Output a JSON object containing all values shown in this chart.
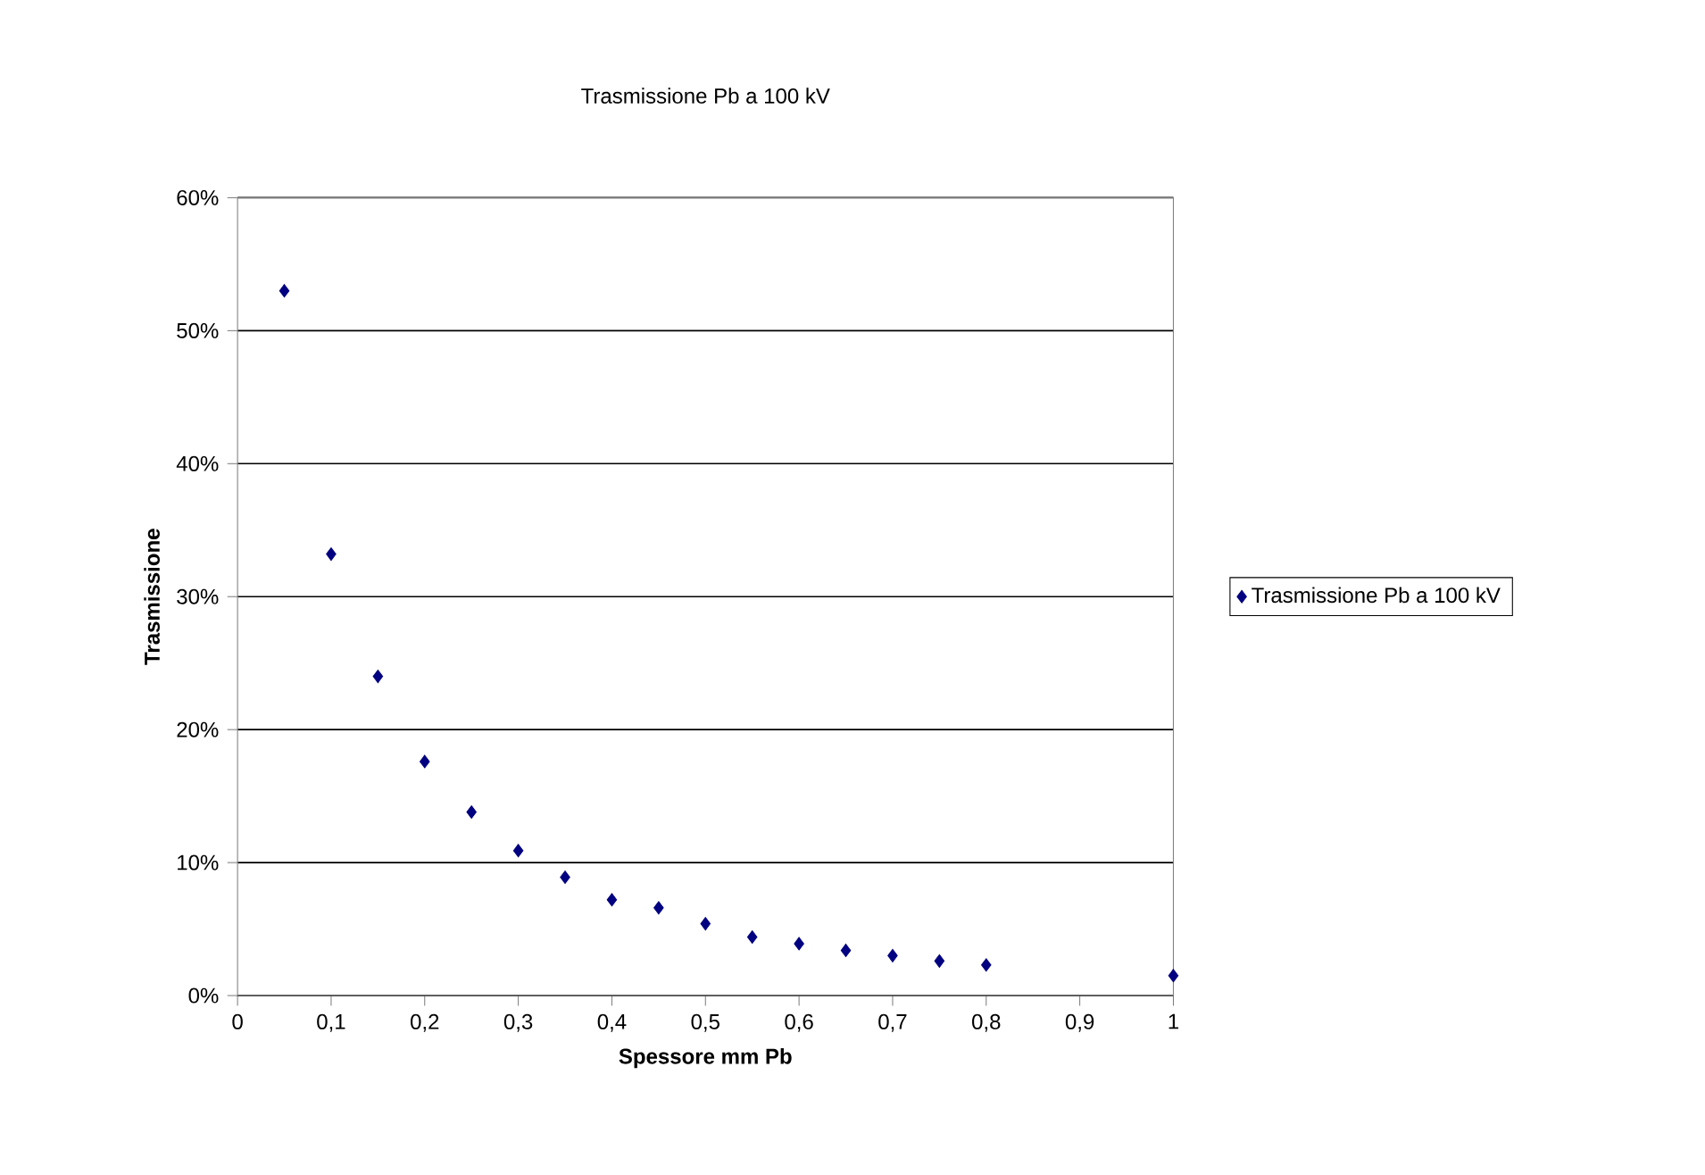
{
  "chart_data": {
    "type": "scatter",
    "title": "Trasmissione Pb a 100 kV",
    "xlabel": "Spessore mm Pb",
    "ylabel": "Trasmissione",
    "x": [
      0.05,
      0.1,
      0.15,
      0.2,
      0.25,
      0.3,
      0.35,
      0.4,
      0.45,
      0.5,
      0.55,
      0.6,
      0.65,
      0.7,
      0.75,
      0.8,
      1.0
    ],
    "series": [
      {
        "name": "Trasmissione Pb a 100 kV",
        "color": "#000080",
        "values": [
          53,
          33.2,
          24,
          17.6,
          13.8,
          10.9,
          8.9,
          7.2,
          6.6,
          5.4,
          4.4,
          3.9,
          3.4,
          3.0,
          2.6,
          2.3,
          1.5
        ]
      }
    ],
    "xlim": [
      0,
      1
    ],
    "ylim": [
      0,
      60
    ],
    "xticks": [
      0,
      {
        "value": 0.1,
        "label": "0,1"
      },
      {
        "value": 0.2,
        "label": "0,2"
      },
      {
        "value": 0.3,
        "label": "0,3"
      },
      {
        "value": 0.4,
        "label": "0,4"
      },
      {
        "value": 0.5,
        "label": "0,5"
      },
      {
        "value": 0.6,
        "label": "0,6"
      },
      {
        "value": 0.7,
        "label": "0,7"
      },
      {
        "value": 0.8,
        "label": "0,8"
      },
      {
        "value": 0.9,
        "label": "0,9"
      },
      1
    ],
    "yticks": [
      {
        "value": 0,
        "label": "0%"
      },
      {
        "value": 10,
        "label": "10%"
      },
      {
        "value": 20,
        "label": "20%"
      },
      {
        "value": 30,
        "label": "30%"
      },
      {
        "value": 40,
        "label": "40%"
      },
      {
        "value": 50,
        "label": "50%"
      },
      {
        "value": 60,
        "label": "60%"
      }
    ],
    "grid": "y",
    "legend": "right",
    "marker": "diamond"
  }
}
